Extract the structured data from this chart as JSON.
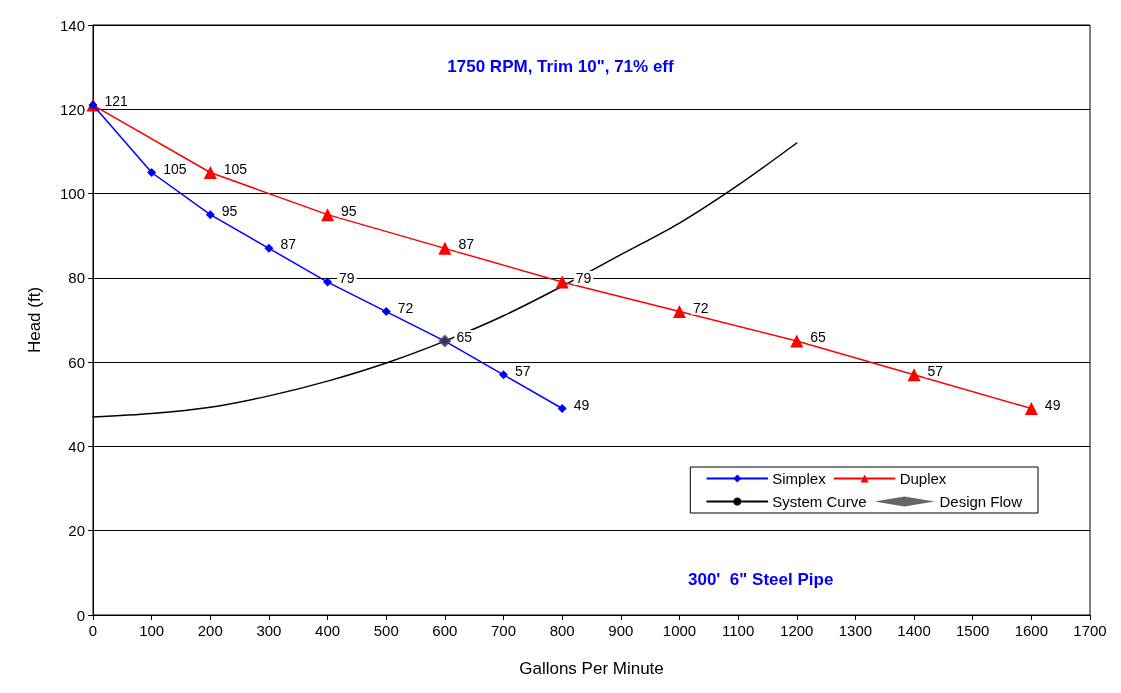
{
  "chart_data": {
    "type": "line",
    "title": "1750 RPM, Trim 10\", 71% eff",
    "xlabel": "Gallons Per Minute",
    "ylabel": "Head (ft)",
    "annotations": [
      "300'  6\" Steel Pipe"
    ],
    "xlim": [
      0,
      1700
    ],
    "xticks": [
      0,
      100,
      200,
      300,
      400,
      500,
      600,
      700,
      800,
      900,
      1000,
      1100,
      1200,
      1300,
      1400,
      1500,
      1600,
      1700
    ],
    "ylim": [
      0,
      140
    ],
    "yticks": [
      0,
      20,
      40,
      60,
      80,
      100,
      120,
      140
    ],
    "grid": "y",
    "legend": "bottom right",
    "series": [
      {
        "name": "Simplex",
        "color": "#0000ff",
        "marker": "diamond",
        "x": [
          0,
          100,
          200,
          300,
          400,
          500,
          600,
          700,
          800
        ],
        "values": [
          121,
          105,
          95,
          87,
          79,
          72,
          65,
          57,
          49
        ],
        "value_labels": [
          "121",
          "105",
          "95",
          "87",
          "79",
          "72",
          "65",
          "57",
          "49"
        ]
      },
      {
        "name": "Duplex",
        "color": "#ff0000",
        "marker": "triangle",
        "x": [
          0,
          200,
          400,
          600,
          800,
          1000,
          1200,
          1400,
          1600
        ],
        "values": [
          121,
          105,
          95,
          87,
          79,
          72,
          65,
          57,
          49
        ],
        "value_labels": [
          null,
          "105",
          "95",
          "87",
          "79",
          "72",
          "65",
          "57",
          "49"
        ]
      },
      {
        "name": "System Curve",
        "color": "#000000",
        "marker": "none",
        "x": [
          0,
          100,
          200,
          300,
          400,
          500,
          600,
          700,
          800,
          900,
          1000,
          1100,
          1200
        ],
        "values": [
          47,
          47.8,
          49.3,
          52,
          55.5,
          59.8,
          65,
          71,
          78,
          85.5,
          93,
          102,
          112
        ]
      },
      {
        "name": "Design Flow",
        "type": "scatter",
        "color": "#404040",
        "marker": "diamond",
        "x": [
          600
        ],
        "values": [
          65
        ]
      }
    ]
  }
}
